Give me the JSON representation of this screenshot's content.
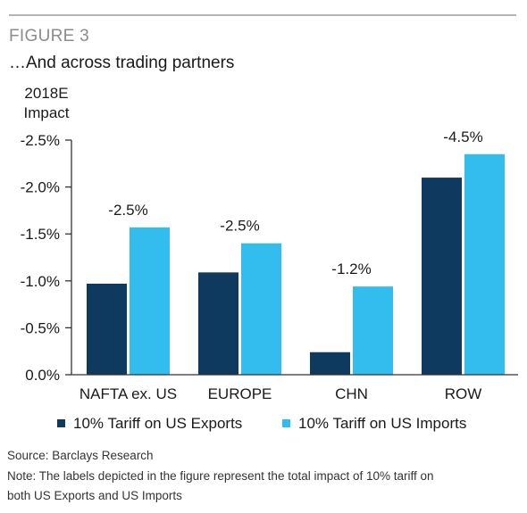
{
  "figure_label": "FIGURE 3",
  "figure_title": "…And across trading partners",
  "source": "Source: Barclays Research",
  "note_line1": "Note: The labels depicted in the figure represent the total impact of 10% tariff on",
  "note_line2": "both US Exports and US Imports",
  "colors": {
    "exports": "#0d3a5e",
    "imports": "#33bdef"
  },
  "chart_data": {
    "type": "bar",
    "ylabel_lines": [
      "2018E",
      "Impact"
    ],
    "categories": [
      "NAFTA ex. US",
      "EUROPE",
      "CHN",
      "ROW"
    ],
    "series": [
      {
        "name": "10% Tariff on US Exports",
        "values": [
          -0.97,
          -1.09,
          -0.24,
          -2.1
        ]
      },
      {
        "name": "10% Tariff on US Imports",
        "values": [
          -1.57,
          -1.4,
          -0.94,
          -2.35
        ]
      }
    ],
    "total_labels": [
      "-2.5%",
      "-2.5%",
      "-1.2%",
      "-4.5%"
    ],
    "y_ticks": [
      {
        "value": 0,
        "label": "0.0%"
      },
      {
        "value": -0.5,
        "label": "-0.5%"
      },
      {
        "value": -1.0,
        "label": "-1.0%"
      },
      {
        "value": -1.5,
        "label": "-1.5%"
      },
      {
        "value": -2.0,
        "label": "-2.0%"
      },
      {
        "value": -2.5,
        "label": "-2.5%"
      }
    ],
    "ylim": [
      0,
      -2.5
    ],
    "legend_position": "bottom"
  }
}
